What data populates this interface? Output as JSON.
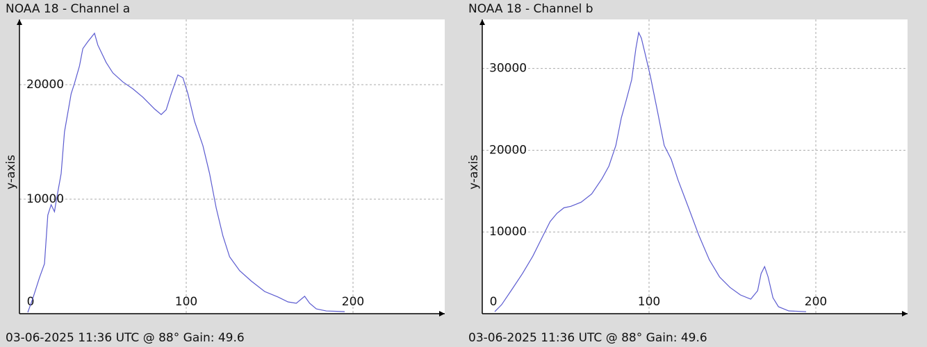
{
  "chart_data": [
    {
      "type": "line",
      "title": "NOAA 18 - Channel a",
      "caption": "03-06-2025 11:36 UTC @ 88° Gain: 49.6",
      "ylabel": "y-axis",
      "color": "#5b5bd0",
      "grid": true,
      "xlim": [
        0,
        255
      ],
      "ylim": [
        0,
        25700
      ],
      "xticks": [
        0,
        100,
        200
      ],
      "yticks": [
        10000,
        20000
      ],
      "x": [
        5,
        8,
        12,
        15,
        17,
        19,
        21,
        22,
        25,
        27,
        31,
        33,
        36,
        38,
        41,
        45,
        47,
        52,
        56,
        62,
        68,
        74,
        81,
        85,
        88,
        91,
        95,
        98,
        101,
        105,
        110,
        114,
        118,
        122,
        126,
        132,
        139,
        147,
        155,
        161,
        166,
        171,
        174,
        178,
        184,
        195
      ],
      "series": [
        {
          "name": "Channel a",
          "values": [
            120,
            1330,
            3150,
            4360,
            8610,
            9520,
            8910,
            9820,
            12240,
            15880,
            19210,
            20120,
            21640,
            23150,
            23760,
            24490,
            23460,
            21940,
            21030,
            20240,
            19640,
            18910,
            17880,
            17390,
            17820,
            19210,
            20850,
            20610,
            19210,
            16790,
            14670,
            12240,
            9210,
            6790,
            4970,
            3760,
            2850,
            1940,
            1460,
            1030,
            910,
            1520,
            910,
            420,
            240,
            180
          ]
        }
      ]
    },
    {
      "type": "line",
      "title": "NOAA 18 - Channel b",
      "caption": "03-06-2025 11:36 UTC @ 88° Gain: 49.6",
      "ylabel": "y-axis",
      "color": "#5b5bd0",
      "grid": true,
      "xlim": [
        0,
        255
      ],
      "ylim": [
        0,
        36000
      ],
      "xticks": [
        0,
        100,
        200
      ],
      "yticks": [
        10000,
        20000,
        30000
      ],
      "x": [
        7.5,
        11.6,
        17.8,
        24.1,
        30.3,
        36.5,
        40.7,
        44.8,
        49,
        53.1,
        59.3,
        65.6,
        71.8,
        75.9,
        80.1,
        83.4,
        86.3,
        89.6,
        92.1,
        93.8,
        95.4,
        97.9,
        100.8,
        105,
        109.1,
        113.3,
        117.4,
        123.7,
        129.9,
        136.1,
        142.3,
        148.5,
        154.8,
        161,
        165.1,
        167.2,
        169.3,
        171.4,
        174.3,
        177.6,
        183.8,
        194.2
      ],
      "series": [
        {
          "name": "Channel b",
          "values": [
            250,
            1100,
            2970,
            4910,
            7030,
            9570,
            11270,
            12280,
            12960,
            13130,
            13640,
            14650,
            16520,
            18040,
            20580,
            23970,
            26090,
            28630,
            32440,
            34390,
            33710,
            31590,
            29050,
            24820,
            20580,
            18890,
            16350,
            12960,
            9570,
            6610,
            4490,
            3220,
            2290,
            1780,
            2800,
            4910,
            5760,
            4490,
            1950,
            850,
            340,
            250
          ]
        }
      ]
    }
  ]
}
